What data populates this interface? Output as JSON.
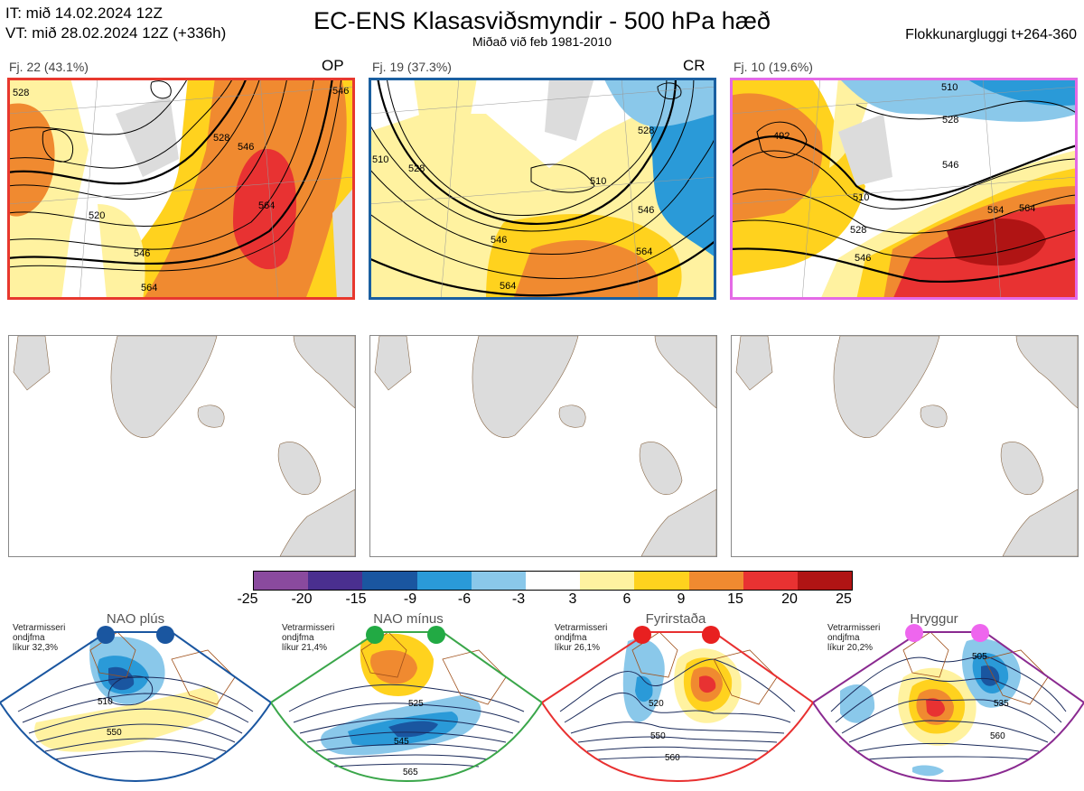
{
  "header": {
    "init_line": "IT: mið 14.02.2024 12Z",
    "valid_line": "VT: mið 28.02.2024 12Z  (+336h)",
    "title": "EC-ENS Klasasviðsmyndir - 500 hPa hæð",
    "subtitle": "Miðað við feb 1981-2010",
    "window": "Flokkunargluggi t+264-360"
  },
  "clusters": [
    {
      "count_label": "Fj. 22 (43.1%)",
      "tag": "OP",
      "frame_color": "#e8382e",
      "contour_labels": [
        "528",
        "546",
        "564",
        "520",
        "546",
        "564",
        "546",
        "528"
      ]
    },
    {
      "count_label": "Fj. 19 (37.3%)",
      "tag": "CR",
      "frame_color": "#1a5fa0",
      "contour_labels": [
        "510",
        "528",
        "510",
        "528",
        "546",
        "564",
        "546",
        "564"
      ]
    },
    {
      "count_label": "Fj. 10 (19.6%)",
      "tag": "",
      "frame_color": "#e46ae6",
      "contour_labels": [
        "492",
        "510",
        "528",
        "546",
        "564",
        "528",
        "546",
        "564",
        "510"
      ]
    }
  ],
  "colorbar": {
    "ticks": [
      "-25",
      "-20",
      "-15",
      "-9",
      "-6",
      "-3",
      "3",
      "6",
      "9",
      "15",
      "20",
      "25"
    ],
    "colors": [
      "#8a4a9e",
      "#4a2f8f",
      "#1a56a0",
      "#2a9ad8",
      "#8ac8ea",
      "#ffffff",
      "#fff2a0",
      "#ffd21e",
      "#f08a30",
      "#e83232",
      "#b01414"
    ]
  },
  "regimes": [
    {
      "name": "NAO plús",
      "note": [
        "Vetrarmisseri",
        "ondjfma",
        "líkur 32,3%"
      ],
      "color": "#1a56a0",
      "dot_color": "#1a56a0",
      "contour_labels": [
        "510",
        "550"
      ]
    },
    {
      "name": "NAO mínus",
      "note": [
        "Vetrarmisseri",
        "ondjfma",
        "líkur 21,4%"
      ],
      "color": "#3aa64a",
      "dot_color": "#22aa44",
      "contour_labels": [
        "525",
        "545",
        "565"
      ]
    },
    {
      "name": "Fyrirstaða",
      "note": [
        "Vetrarmisseri",
        "ondjfma",
        "líkur 26,1%"
      ],
      "color": "#e83030",
      "dot_color": "#e82020",
      "contour_labels": [
        "520",
        "550",
        "560"
      ]
    },
    {
      "name": "Hryggur",
      "note": [
        "Vetrarmisseri",
        "ondjfma",
        "líkur 20,2%"
      ],
      "color": "#8a2a90",
      "dot_color": "#ee66ee",
      "contour_labels": [
        "505",
        "535",
        "560"
      ]
    }
  ]
}
